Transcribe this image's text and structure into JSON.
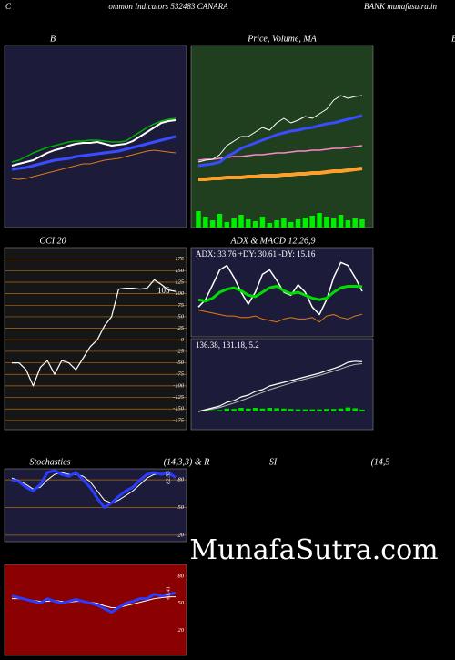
{
  "header": {
    "left": "C",
    "title": "ommon  Indicators 532483 CANARA",
    "right": "BANK munafasutra.in",
    "edge": "B"
  },
  "watermark": "MunafaSutra.com",
  "chart_data": [
    {
      "type": "line",
      "title": "B",
      "background": "#1c1c3a",
      "ylim": [
        0,
        100
      ],
      "series": [
        {
          "color": "#00b000",
          "width": 1.5,
          "values": [
            36,
            37,
            39,
            41,
            42.5,
            44,
            45,
            46,
            47,
            47.5,
            47.5,
            48,
            48,
            47.5,
            47,
            47,
            47.5,
            50,
            52.5,
            55,
            57,
            58.5,
            59.5,
            60
          ]
        },
        {
          "color": "#e07a10",
          "width": 1,
          "values": [
            27,
            26.5,
            27,
            28,
            29,
            30,
            31,
            32,
            33,
            34,
            35,
            35,
            36,
            37,
            37.5,
            38,
            39,
            40,
            41,
            42,
            42.5,
            42,
            41.5,
            41
          ]
        },
        {
          "color": "#3a4cff",
          "width": 3,
          "values": [
            32,
            32.5,
            33,
            34,
            35,
            36,
            37,
            37.5,
            38,
            39,
            39.5,
            40,
            40.5,
            41,
            41.5,
            42,
            43,
            44,
            45,
            46,
            47,
            48,
            49,
            50
          ]
        },
        {
          "color": "#ffffff",
          "width": 2,
          "values": [
            34,
            35,
            36,
            37,
            39,
            41,
            42.5,
            43.5,
            45,
            46,
            46.5,
            46.5,
            47,
            46,
            45,
            45.5,
            46,
            47.5,
            50,
            52.5,
            55,
            57.5,
            58.5,
            59
          ]
        }
      ]
    },
    {
      "type": "line",
      "title": "Price,  Volume,  MA",
      "background": "#1f3f1f",
      "ylim": [
        0,
        100
      ],
      "series": [
        {
          "type": "bar",
          "color": "#00ee00",
          "ylim": [
            0,
            200
          ],
          "values": [
            18,
            12,
            8,
            15,
            6,
            10,
            14,
            9,
            7,
            12,
            5,
            8,
            10,
            6,
            9,
            11,
            13,
            16,
            12,
            10,
            14,
            8,
            10,
            9
          ]
        },
        {
          "color": "#ff9f2a",
          "width": 4,
          "values": [
            26.5,
            26.5,
            27,
            27,
            27.5,
            27.5,
            27.5,
            28,
            28,
            28.5,
            28.5,
            28.5,
            29,
            29,
            29.5,
            29.5,
            30,
            30,
            30.5,
            31,
            31,
            31.5,
            32,
            32.5
          ]
        },
        {
          "color": "#ff88cc",
          "width": 1.5,
          "values": [
            37,
            37.5,
            37.5,
            38,
            38.5,
            39,
            39,
            39.5,
            40,
            40,
            40.5,
            41,
            41,
            41.5,
            42,
            42,
            42.5,
            42.5,
            43,
            43.5,
            43.5,
            44,
            44.5,
            45
          ]
        },
        {
          "color": "#3a4cff",
          "width": 3,
          "values": [
            34,
            34.5,
            35,
            36,
            39,
            41,
            43.5,
            45,
            46.5,
            48,
            49.5,
            51,
            52,
            53,
            53.5,
            54.5,
            55,
            56,
            57,
            57.5,
            58.5,
            59.5,
            60.5,
            61.5
          ]
        },
        {
          "color": "#ffffff",
          "width": 1,
          "values": [
            36,
            37,
            37.5,
            40,
            45,
            47.5,
            50,
            50,
            52.5,
            55,
            53.5,
            57.5,
            60,
            57.5,
            59,
            61,
            60,
            62.5,
            65,
            70,
            72.5,
            71,
            72,
            72.5
          ]
        }
      ]
    },
    {
      "type": "line",
      "title": "CCI 20",
      "background": "#161616",
      "grid": true,
      "grid_color": "#b06a10",
      "ylim": [
        -195,
        200
      ],
      "yticks": [
        175,
        150,
        125,
        100,
        75,
        50,
        25,
        0,
        -25,
        -50,
        -75,
        -100,
        -125,
        -150,
        -175
      ],
      "series": [
        {
          "color": "#ffffff",
          "width": 1.2,
          "values": [
            -50,
            -50,
            -65,
            -100,
            -60,
            -45,
            -75,
            -45,
            -50,
            -65,
            -40,
            -15,
            0,
            30,
            50,
            110,
            112,
            112,
            110,
            112,
            130,
            120,
            108,
            105
          ]
        }
      ]
    },
    {
      "type": "line",
      "title": "ADX  & MACD 12,26,9",
      "background": "#1c1c3a",
      "ylim": [
        0,
        60
      ],
      "label": "ADX: 33.76  +DY: 30.61 -DY: 15.16",
      "series": [
        {
          "color": "#e07a10",
          "width": 1,
          "values": [
            18,
            17,
            16,
            15,
            14,
            14,
            13,
            13,
            14,
            12,
            11,
            10,
            12,
            13,
            12,
            12,
            13,
            10,
            14,
            15,
            13,
            12,
            14,
            15.16
          ]
        },
        {
          "color": "#ffffff",
          "width": 1.5,
          "values": [
            20,
            25,
            35,
            45,
            48,
            40,
            30,
            22,
            30,
            42,
            45,
            38,
            30,
            28,
            35,
            30,
            20,
            15,
            25,
            40,
            50,
            48,
            40,
            30.61
          ]
        },
        {
          "color": "#00dd00",
          "width": 3,
          "values": [
            25,
            24,
            26,
            30,
            32,
            33,
            31,
            28,
            27,
            30,
            33,
            34,
            31,
            29,
            30,
            28,
            26,
            25,
            26,
            30,
            33,
            34,
            34,
            33.76
          ]
        }
      ]
    },
    {
      "type": "line",
      "background": "#1c1c3a",
      "ylim": [
        -50,
        200
      ],
      "label": "136.38,  131.18,  5.2",
      "series": [
        {
          "type": "bar",
          "color": "#00dd00",
          "values": [
            0,
            2,
            3,
            4,
            8,
            7,
            10,
            8,
            10,
            8,
            10,
            9,
            8,
            7,
            6,
            6,
            6,
            6,
            7,
            7,
            8,
            11,
            9,
            5.2
          ]
        },
        {
          "color": "#bbbbbb",
          "width": 1,
          "values": [
            0,
            3,
            7,
            11,
            17,
            23,
            30,
            37,
            45,
            52,
            60,
            66,
            72,
            78,
            84,
            89,
            94,
            99,
            105,
            111,
            117,
            124,
            129,
            131.18
          ]
        },
        {
          "color": "#ffffff",
          "width": 1.2,
          "values": [
            0,
            5,
            10,
            15,
            25,
            30,
            40,
            45,
            55,
            60,
            70,
            75,
            80,
            85,
            90,
            95,
            100,
            105,
            112,
            118,
            125,
            135,
            138,
            136.38
          ]
        }
      ]
    },
    {
      "type": "line",
      "title": "Stochastics",
      "subtitle": "(14,3,3) & R",
      "background": "#1c1c3a",
      "grid": true,
      "grid_color": "#b06a10",
      "ylim": [
        13,
        92
      ],
      "yticks": [
        80,
        50,
        20
      ],
      "series": [
        {
          "color": "#ffffff",
          "width": 1,
          "values": [
            82,
            79,
            75,
            70,
            72,
            80,
            86,
            88,
            86,
            86,
            84,
            78,
            68,
            58,
            55,
            58,
            63,
            68,
            75,
            82,
            86,
            87,
            87,
            83
          ]
        },
        {
          "color": "#2a3cff",
          "width": 3,
          "values": [
            80,
            78,
            72,
            68,
            75,
            88,
            90,
            86,
            84,
            88,
            80,
            72,
            60,
            50,
            55,
            62,
            68,
            72,
            80,
            86,
            88,
            86,
            88,
            82.53
          ]
        }
      ]
    },
    {
      "type": "line",
      "title": "SI",
      "subtitle": "(14,5",
      "background": "#8b0000",
      "grid": false,
      "ylim": [
        -8,
        93
      ],
      "yticks": [
        80,
        50,
        20
      ],
      "series": [
        {
          "color": "#ffffff",
          "width": 1,
          "values": [
            55,
            55,
            54,
            53,
            52,
            52,
            53,
            52,
            51,
            52,
            52,
            51,
            50,
            47,
            45,
            45,
            47,
            49,
            51,
            53,
            55,
            56,
            57,
            57
          ]
        },
        {
          "color": "#2a3cff",
          "width": 3,
          "values": [
            58,
            56,
            54,
            52,
            50,
            55,
            52,
            50,
            52,
            54,
            52,
            50,
            48,
            44,
            40,
            45,
            50,
            52,
            55,
            55,
            60,
            58,
            60,
            61.41
          ]
        }
      ]
    }
  ]
}
